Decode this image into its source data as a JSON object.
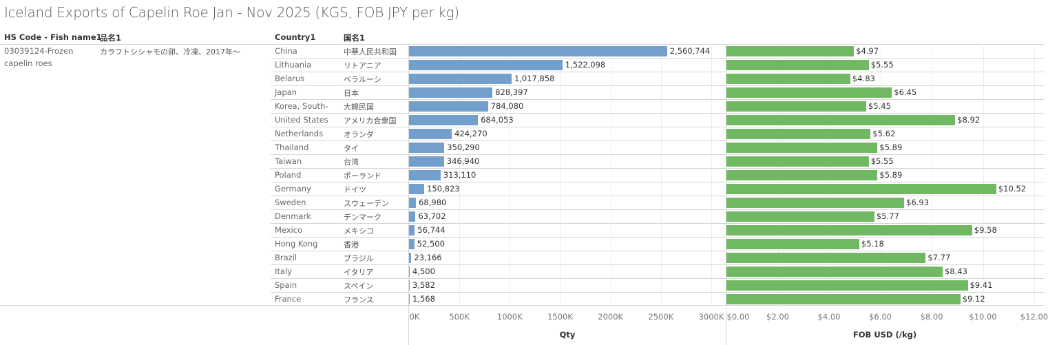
{
  "title": "Iceland Exports of Capelin Roe Jan - Nov 2025 (KGS, FOB JPY per kg)",
  "headers": {
    "hs": "HS Code - Fish name1",
    "item": "品名1",
    "country": "Country1",
    "jp": "国名1"
  },
  "product": {
    "hs_line1": "03039124-Frozen",
    "hs_line2": "capelin roes",
    "item": "カラフトシシャモの卵、冷凍、2017年～"
  },
  "colors": {
    "qty": "#729fcb",
    "price": "#70b962"
  },
  "chart_data": [
    {
      "type": "bar",
      "orientation": "horizontal",
      "title": "Qty",
      "xlabel": "Qty",
      "xlim": [
        0,
        3000000
      ],
      "ticks": [
        "0K",
        "500K",
        "1000K",
        "1500K",
        "2000K",
        "2500K",
        "3000K"
      ],
      "categories": [
        "China",
        "Lithuania",
        "Belarus",
        "Japan",
        "Korea, South-",
        "United States",
        "Netherlands",
        "Thailand",
        "Taiwan",
        "Poland",
        "Germany",
        "Sweden",
        "Denmark",
        "Mexico",
        "Hong Kong",
        "Brazil",
        "Italy",
        "Spain",
        "France"
      ],
      "values": [
        2560744,
        1522098,
        1017858,
        828397,
        784080,
        684053,
        424270,
        350290,
        346940,
        313110,
        150823,
        68980,
        63702,
        56744,
        52500,
        23166,
        4500,
        3582,
        1568
      ],
      "labels": [
        "2,560,744",
        "1,522,098",
        "1,017,858",
        "828,397",
        "784,080",
        "684,053",
        "424,270",
        "350,290",
        "346,940",
        "313,110",
        "150,823",
        "68,980",
        "63,702",
        "56,744",
        "52,500",
        "23,166",
        "4,500",
        "3,582",
        "1,568"
      ]
    },
    {
      "type": "bar",
      "orientation": "horizontal",
      "title": "FOB USD (/kg)",
      "xlabel": "FOB USD (/kg)",
      "xlim": [
        0,
        12
      ],
      "ticks": [
        "$0.00",
        "$2.00",
        "$4.00",
        "$6.00",
        "$8.00",
        "$10.00",
        "$12.00"
      ],
      "values": [
        4.97,
        5.55,
        4.83,
        6.45,
        5.45,
        8.92,
        5.62,
        5.89,
        5.55,
        5.89,
        10.52,
        6.93,
        5.77,
        9.58,
        5.18,
        7.77,
        8.43,
        9.41,
        9.12
      ],
      "labels": [
        "$4.97",
        "$5.55",
        "$4.83",
        "$6.45",
        "$5.45",
        "$8.92",
        "$5.62",
        "$5.89",
        "$5.55",
        "$5.89",
        "$10.52",
        "$6.93",
        "$5.77",
        "$9.58",
        "$5.18",
        "$7.77",
        "$8.43",
        "$9.41",
        "$9.12"
      ]
    }
  ],
  "countries_jp": [
    "中華人民共和国",
    "リトアニア",
    "ベラルーシ",
    "日本",
    "大韓民国",
    "アメリカ合衆国",
    "オランダ",
    "タイ",
    "台湾",
    "ポーランド",
    "ドイツ",
    "スウェーデン",
    "デンマーク",
    "メキシコ",
    "香港",
    "ブラジル",
    "イタリア",
    "スペイン",
    "フランス"
  ]
}
